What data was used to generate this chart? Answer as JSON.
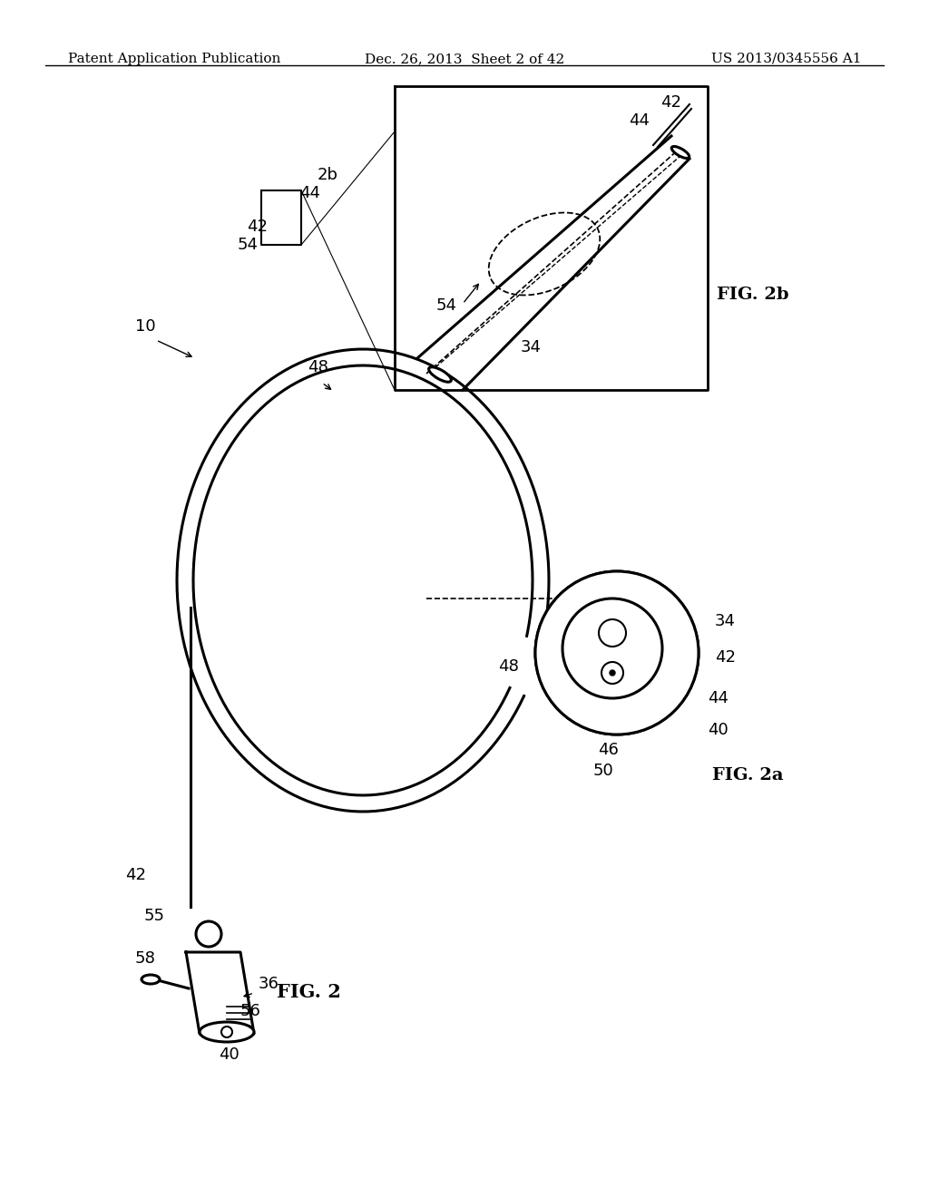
{
  "bg_color": "#ffffff",
  "line_color": "#000000",
  "header_left": "Patent Application Publication",
  "header_center": "Dec. 26, 2013  Sheet 2 of 42",
  "header_right": "US 2013/0345556 A1",
  "fig2_label": "FIG. 2",
  "fig2a_label": "FIG. 2a",
  "fig2b_label": "FIG. 2b",
  "label_10": "10",
  "label_36": "36",
  "label_40": "40",
  "label_42": "42",
  "label_44": "44",
  "label_46": "46",
  "label_48": "48",
  "label_50": "50",
  "label_54": "54",
  "label_55": "55",
  "label_56": "56",
  "label_58": "58",
  "label_34": "34",
  "label_2b": "2b"
}
